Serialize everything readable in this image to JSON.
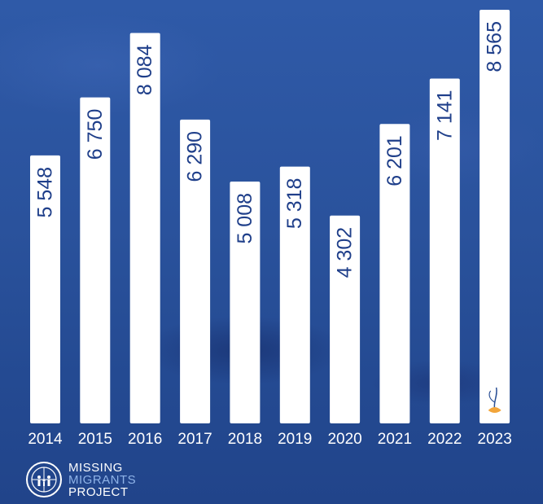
{
  "chart_data": {
    "type": "bar",
    "categories": [
      "2014",
      "2015",
      "2016",
      "2017",
      "2018",
      "2019",
      "2020",
      "2021",
      "2022",
      "2023"
    ],
    "values": [
      5548,
      6750,
      8084,
      6290,
      5008,
      5318,
      4302,
      6201,
      7141,
      8565
    ],
    "value_labels": [
      "5 548",
      "6 750",
      "8 084",
      "6 290",
      "5 008",
      "5 318",
      "4 302",
      "6 201",
      "7 141",
      "8 565"
    ],
    "title": "",
    "xlabel": "",
    "ylabel": "",
    "ylim": [
      0,
      8565
    ],
    "grid": false,
    "legend": "none",
    "colors": {
      "bar": "#ffffff",
      "value_text": "#1f3f8a",
      "tick_text": "#ffffff",
      "flower": "#f2a53a"
    }
  },
  "logo": {
    "line1": "MISSING",
    "line2": "MIGRANTS",
    "line3": "PROJECT",
    "icon": "iom-emblem-icon"
  },
  "annotation": {
    "icon": "flower-icon"
  }
}
